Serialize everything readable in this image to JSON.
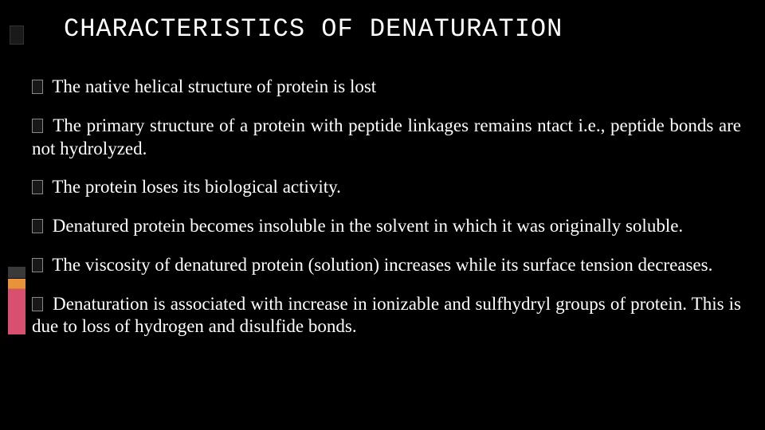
{
  "slide": {
    "title": "CHARACTERISTICS OF DENATURATION",
    "bullets": [
      " The native helical structure of protein is lost",
      " The primary structure of a protein with peptide linkages remains ntact i.e., peptide bonds are not hydrolyzed.",
      " The protein loses its biological activity.",
      " Denatured protein becomes insoluble in the solvent in which it was originally soluble.",
      " The viscosity of denatured protein (solution) increases while its surface tension decreases.",
      " Denaturation is associated with increase in ionizable and sulfhydryl groups of protein. This is due to loss of hydrogen and disulfide bonds."
    ]
  },
  "style": {
    "background_color": "#000000",
    "text_color": "#ffffff",
    "title_font": "Consolas, monospace",
    "title_fontsize": 32,
    "body_font": "Georgia, serif",
    "body_fontsize": 23,
    "accent_orange": "#e8923a",
    "accent_pink": "#d94f6f",
    "slide_width": 960,
    "slide_height": 540
  }
}
